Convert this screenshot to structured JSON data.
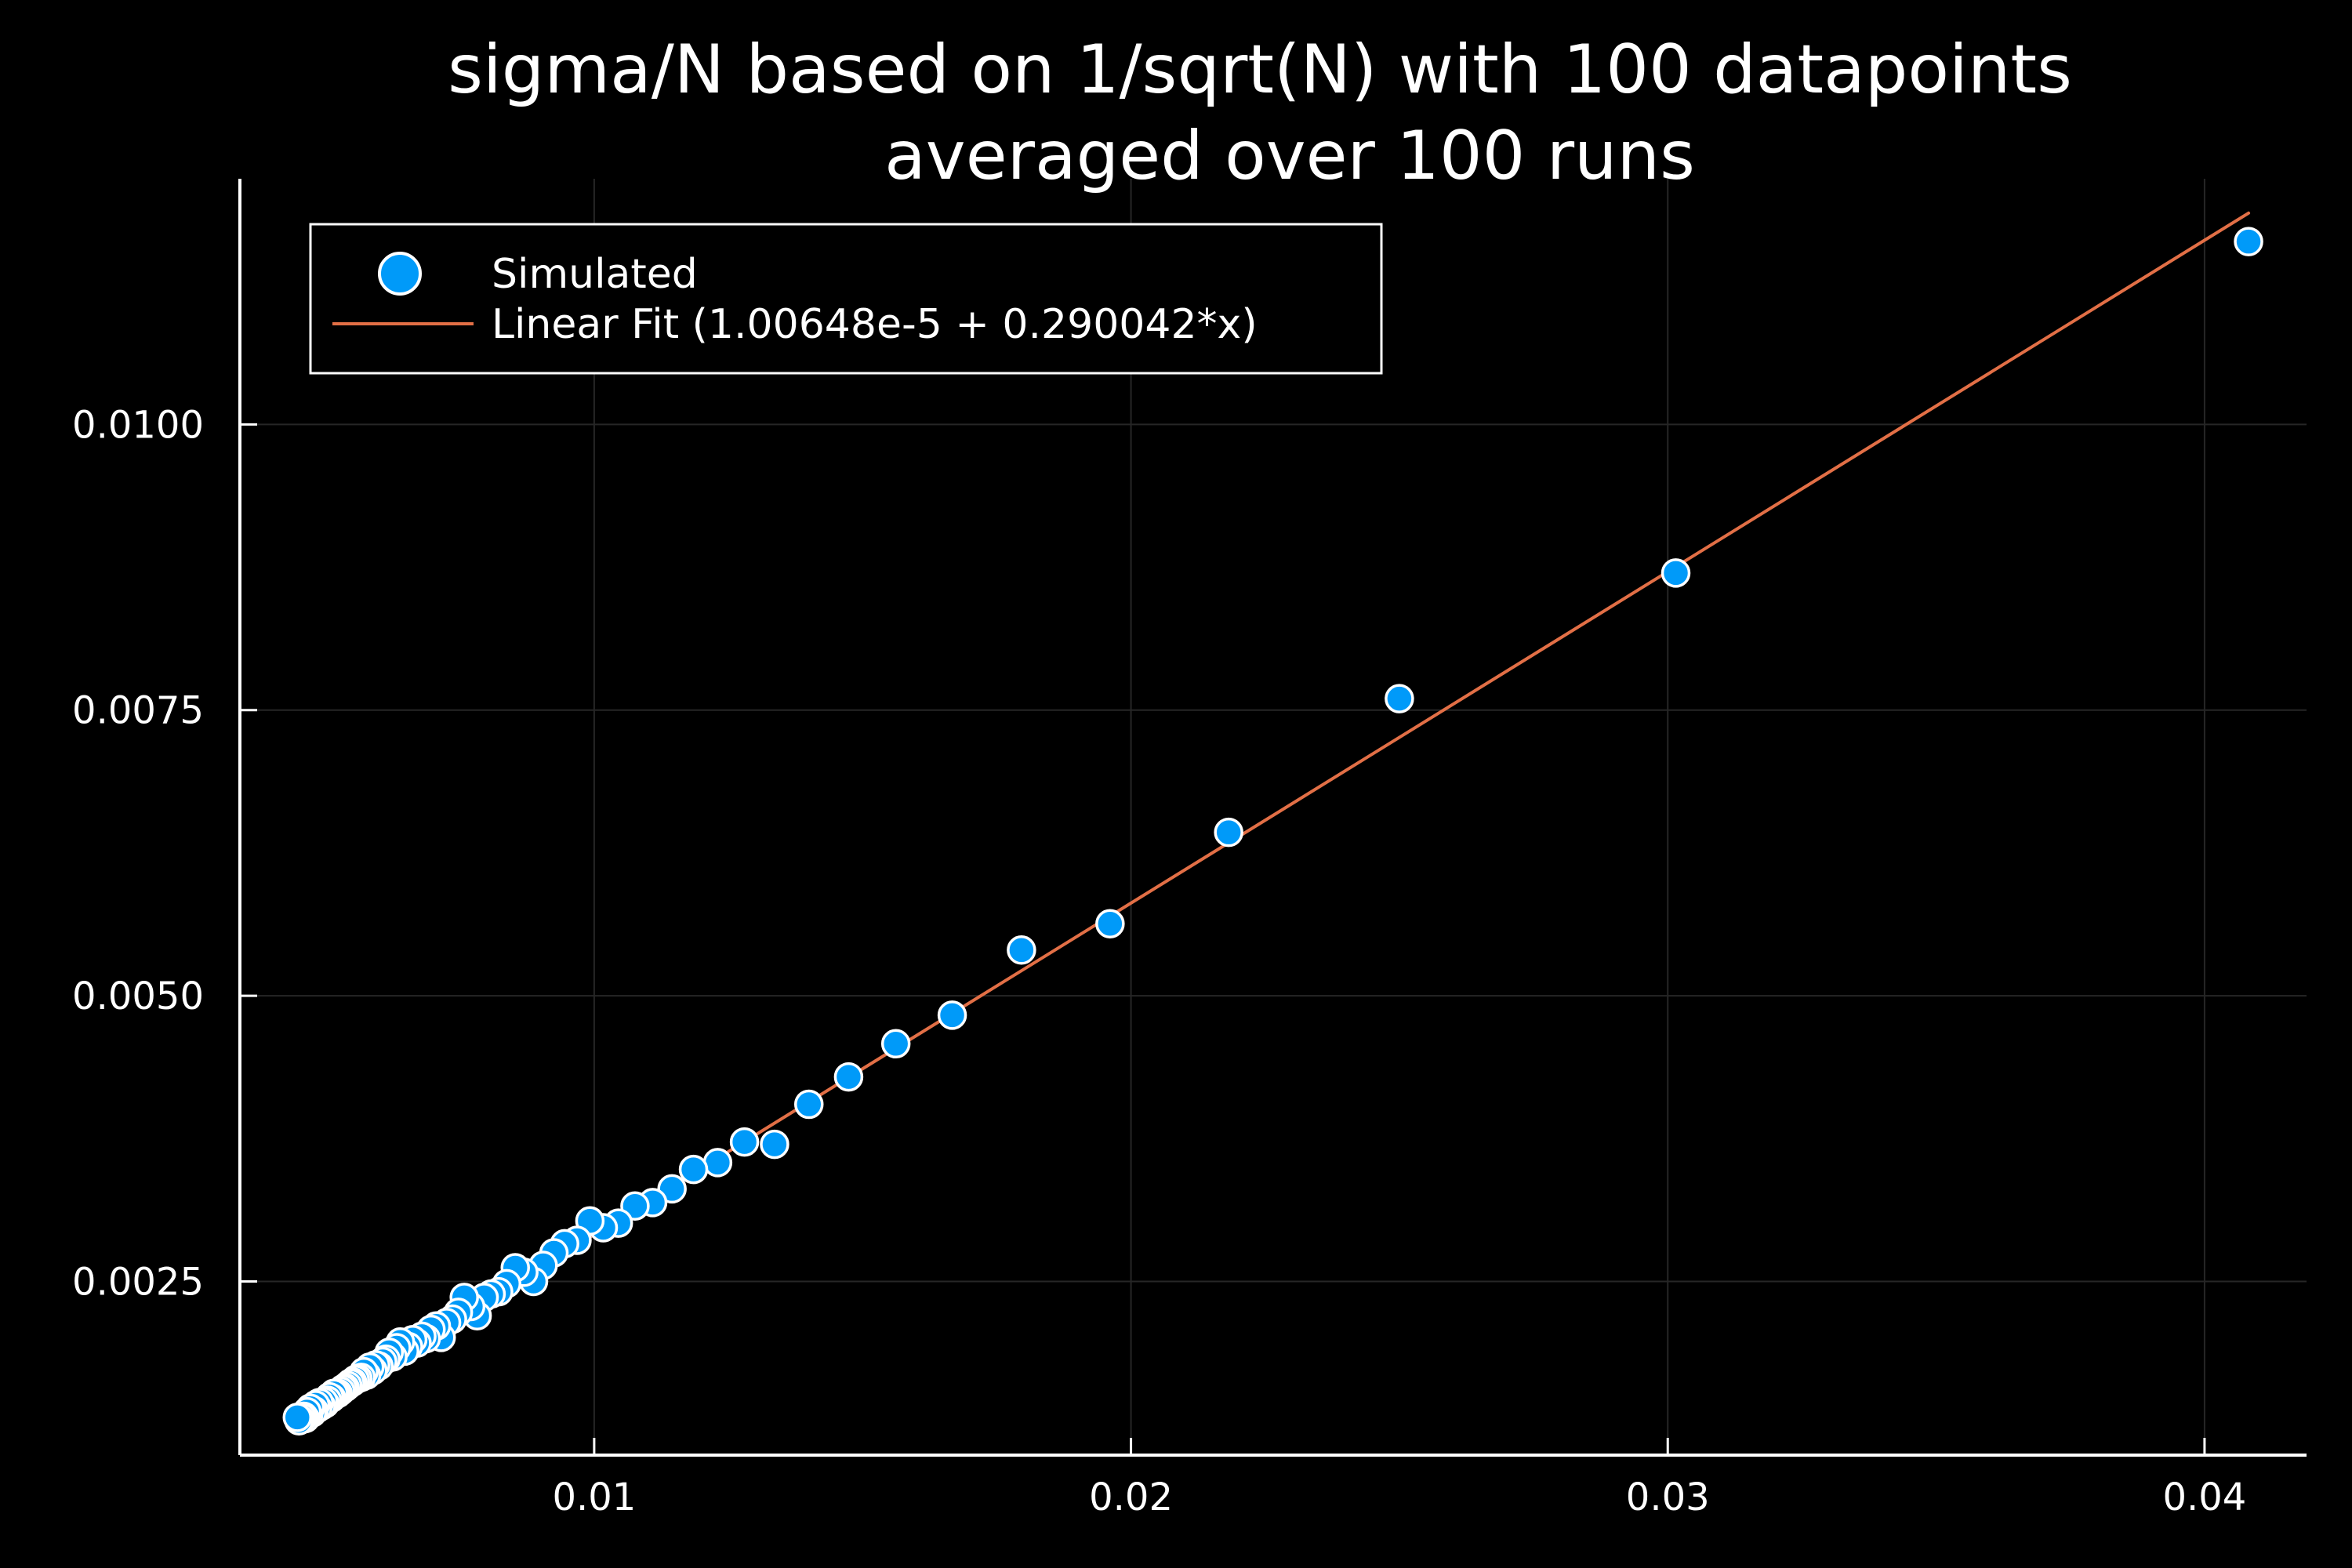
{
  "chart_data": {
    "type": "scatter",
    "title": [
      "sigma/N based on 1/sqrt(N) with 100 datapoints",
      "averaged over 100 runs"
    ],
    "xlabel": "",
    "ylabel": "",
    "xlim": [
      0.0034,
      0.0419
    ],
    "ylim": [
      0.00098,
      0.01215
    ],
    "grid": true,
    "legend_position": "top-left",
    "background": "#000000",
    "foreground": "#ffffff",
    "x_ticks": [
      {
        "value": 0.01,
        "label": "0.01"
      },
      {
        "value": 0.02,
        "label": "0.02"
      },
      {
        "value": 0.03,
        "label": "0.03"
      },
      {
        "value": 0.04,
        "label": "0.04"
      }
    ],
    "y_ticks": [
      {
        "value": 0.0025,
        "label": "0.0025"
      },
      {
        "value": 0.005,
        "label": "0.0050"
      },
      {
        "value": 0.0075,
        "label": "0.0075"
      },
      {
        "value": 0.01,
        "label": "0.0100"
      }
    ],
    "series": [
      {
        "name": "Simulated",
        "kind": "scatter",
        "color": "#009af9",
        "edge_color": "#ffffff",
        "points": [
          [
            0.04082,
            0.0116
          ],
          [
            0.03015,
            0.0087
          ],
          [
            0.025,
            0.0076
          ],
          [
            0.02182,
            0.00643
          ],
          [
            0.01961,
            0.00563
          ],
          [
            0.01796,
            0.0054
          ],
          [
            0.01667,
            0.00483
          ],
          [
            0.01562,
            0.00458
          ],
          [
            0.01474,
            0.00429
          ],
          [
            0.014,
            0.00405
          ],
          [
            0.01336,
            0.0037
          ],
          [
            0.0128,
            0.00372
          ],
          [
            0.0123,
            0.00354
          ],
          [
            0.01185,
            0.00348
          ],
          [
            0.01145,
            0.00331
          ],
          [
            0.01109,
            0.00319
          ],
          [
            0.01076,
            0.00316
          ],
          [
            0.01045,
            0.00301
          ],
          [
            0.01017,
            0.00297
          ],
          [
            0.00992,
            0.00303
          ],
          [
            0.00968,
            0.00286
          ],
          [
            0.00945,
            0.00283
          ],
          [
            0.00925,
            0.00275
          ],
          [
            0.00905,
            0.00264
          ],
          [
            0.00887,
            0.0025
          ],
          [
            0.00869,
            0.00258
          ],
          [
            0.00853,
            0.00262
          ],
          [
            0.00837,
            0.00248
          ],
          [
            0.00822,
            0.00241
          ],
          [
            0.00808,
            0.00239
          ],
          [
            0.00795,
            0.00236
          ],
          [
            0.00782,
            0.0022
          ],
          [
            0.0077,
            0.00228
          ],
          [
            0.00758,
            0.00236
          ],
          [
            0.00747,
            0.00223
          ],
          [
            0.00736,
            0.00217
          ],
          [
            0.00725,
            0.00214
          ],
          [
            0.00715,
            0.00201
          ],
          [
            0.00706,
            0.00211
          ],
          [
            0.00696,
            0.00208
          ],
          [
            0.00687,
            0.002
          ],
          [
            0.00679,
            0.00202
          ],
          [
            0.0067,
            0.00196
          ],
          [
            0.00662,
            0.00199
          ],
          [
            0.00654,
            0.00193
          ],
          [
            0.00647,
            0.00189
          ],
          [
            0.00639,
            0.00197
          ],
          [
            0.00632,
            0.00192
          ],
          [
            0.00625,
            0.00184
          ],
          [
            0.00618,
            0.00188
          ],
          [
            0.00612,
            0.00182
          ],
          [
            0.00606,
            0.0018
          ],
          [
            0.00599,
            0.00176
          ],
          [
            0.00593,
            0.00177
          ],
          [
            0.00588,
            0.00172
          ],
          [
            0.00582,
            0.00175
          ],
          [
            0.00576,
            0.00168
          ],
          [
            0.00571,
            0.00171
          ],
          [
            0.00566,
            0.00166
          ],
          [
            0.0056,
            0.00165
          ],
          [
            0.00555,
            0.00164
          ],
          [
            0.0055,
            0.00162
          ],
          [
            0.00546,
            0.00161
          ],
          [
            0.00541,
            0.00159
          ],
          [
            0.00536,
            0.00157
          ],
          [
            0.00532,
            0.00156
          ],
          [
            0.00528,
            0.00154
          ],
          [
            0.00523,
            0.00152
          ],
          [
            0.00519,
            0.00151
          ],
          [
            0.00515,
            0.00152
          ],
          [
            0.00511,
            0.00148
          ],
          [
            0.00507,
            0.00149
          ],
          [
            0.00503,
            0.00146
          ],
          [
            0.00499,
            0.00143
          ],
          [
            0.00496,
            0.00145
          ],
          [
            0.00492,
            0.00141
          ],
          [
            0.00488,
            0.00144
          ],
          [
            0.00485,
            0.00139
          ],
          [
            0.00481,
            0.00142
          ],
          [
            0.00478,
            0.00137
          ],
          [
            0.00475,
            0.00135
          ],
          [
            0.00471,
            0.00139
          ],
          [
            0.00468,
            0.00133
          ],
          [
            0.00465,
            0.00136
          ],
          [
            0.00462,
            0.0013
          ],
          [
            0.00459,
            0.00132
          ],
          [
            0.00456,
            0.00131
          ],
          [
            0.00453,
            0.00129
          ],
          [
            0.0045,
            0.00128
          ],
          [
            0.00447,
            0.00131
          ]
        ]
      },
      {
        "name": "Linear Fit (1.00648e-5 + 0.290042*x)",
        "kind": "line",
        "color": "#e26f46",
        "intercept": 1.00648e-05,
        "slope": 0.290042,
        "x_range": [
          0.00447,
          0.04082
        ]
      }
    ]
  }
}
